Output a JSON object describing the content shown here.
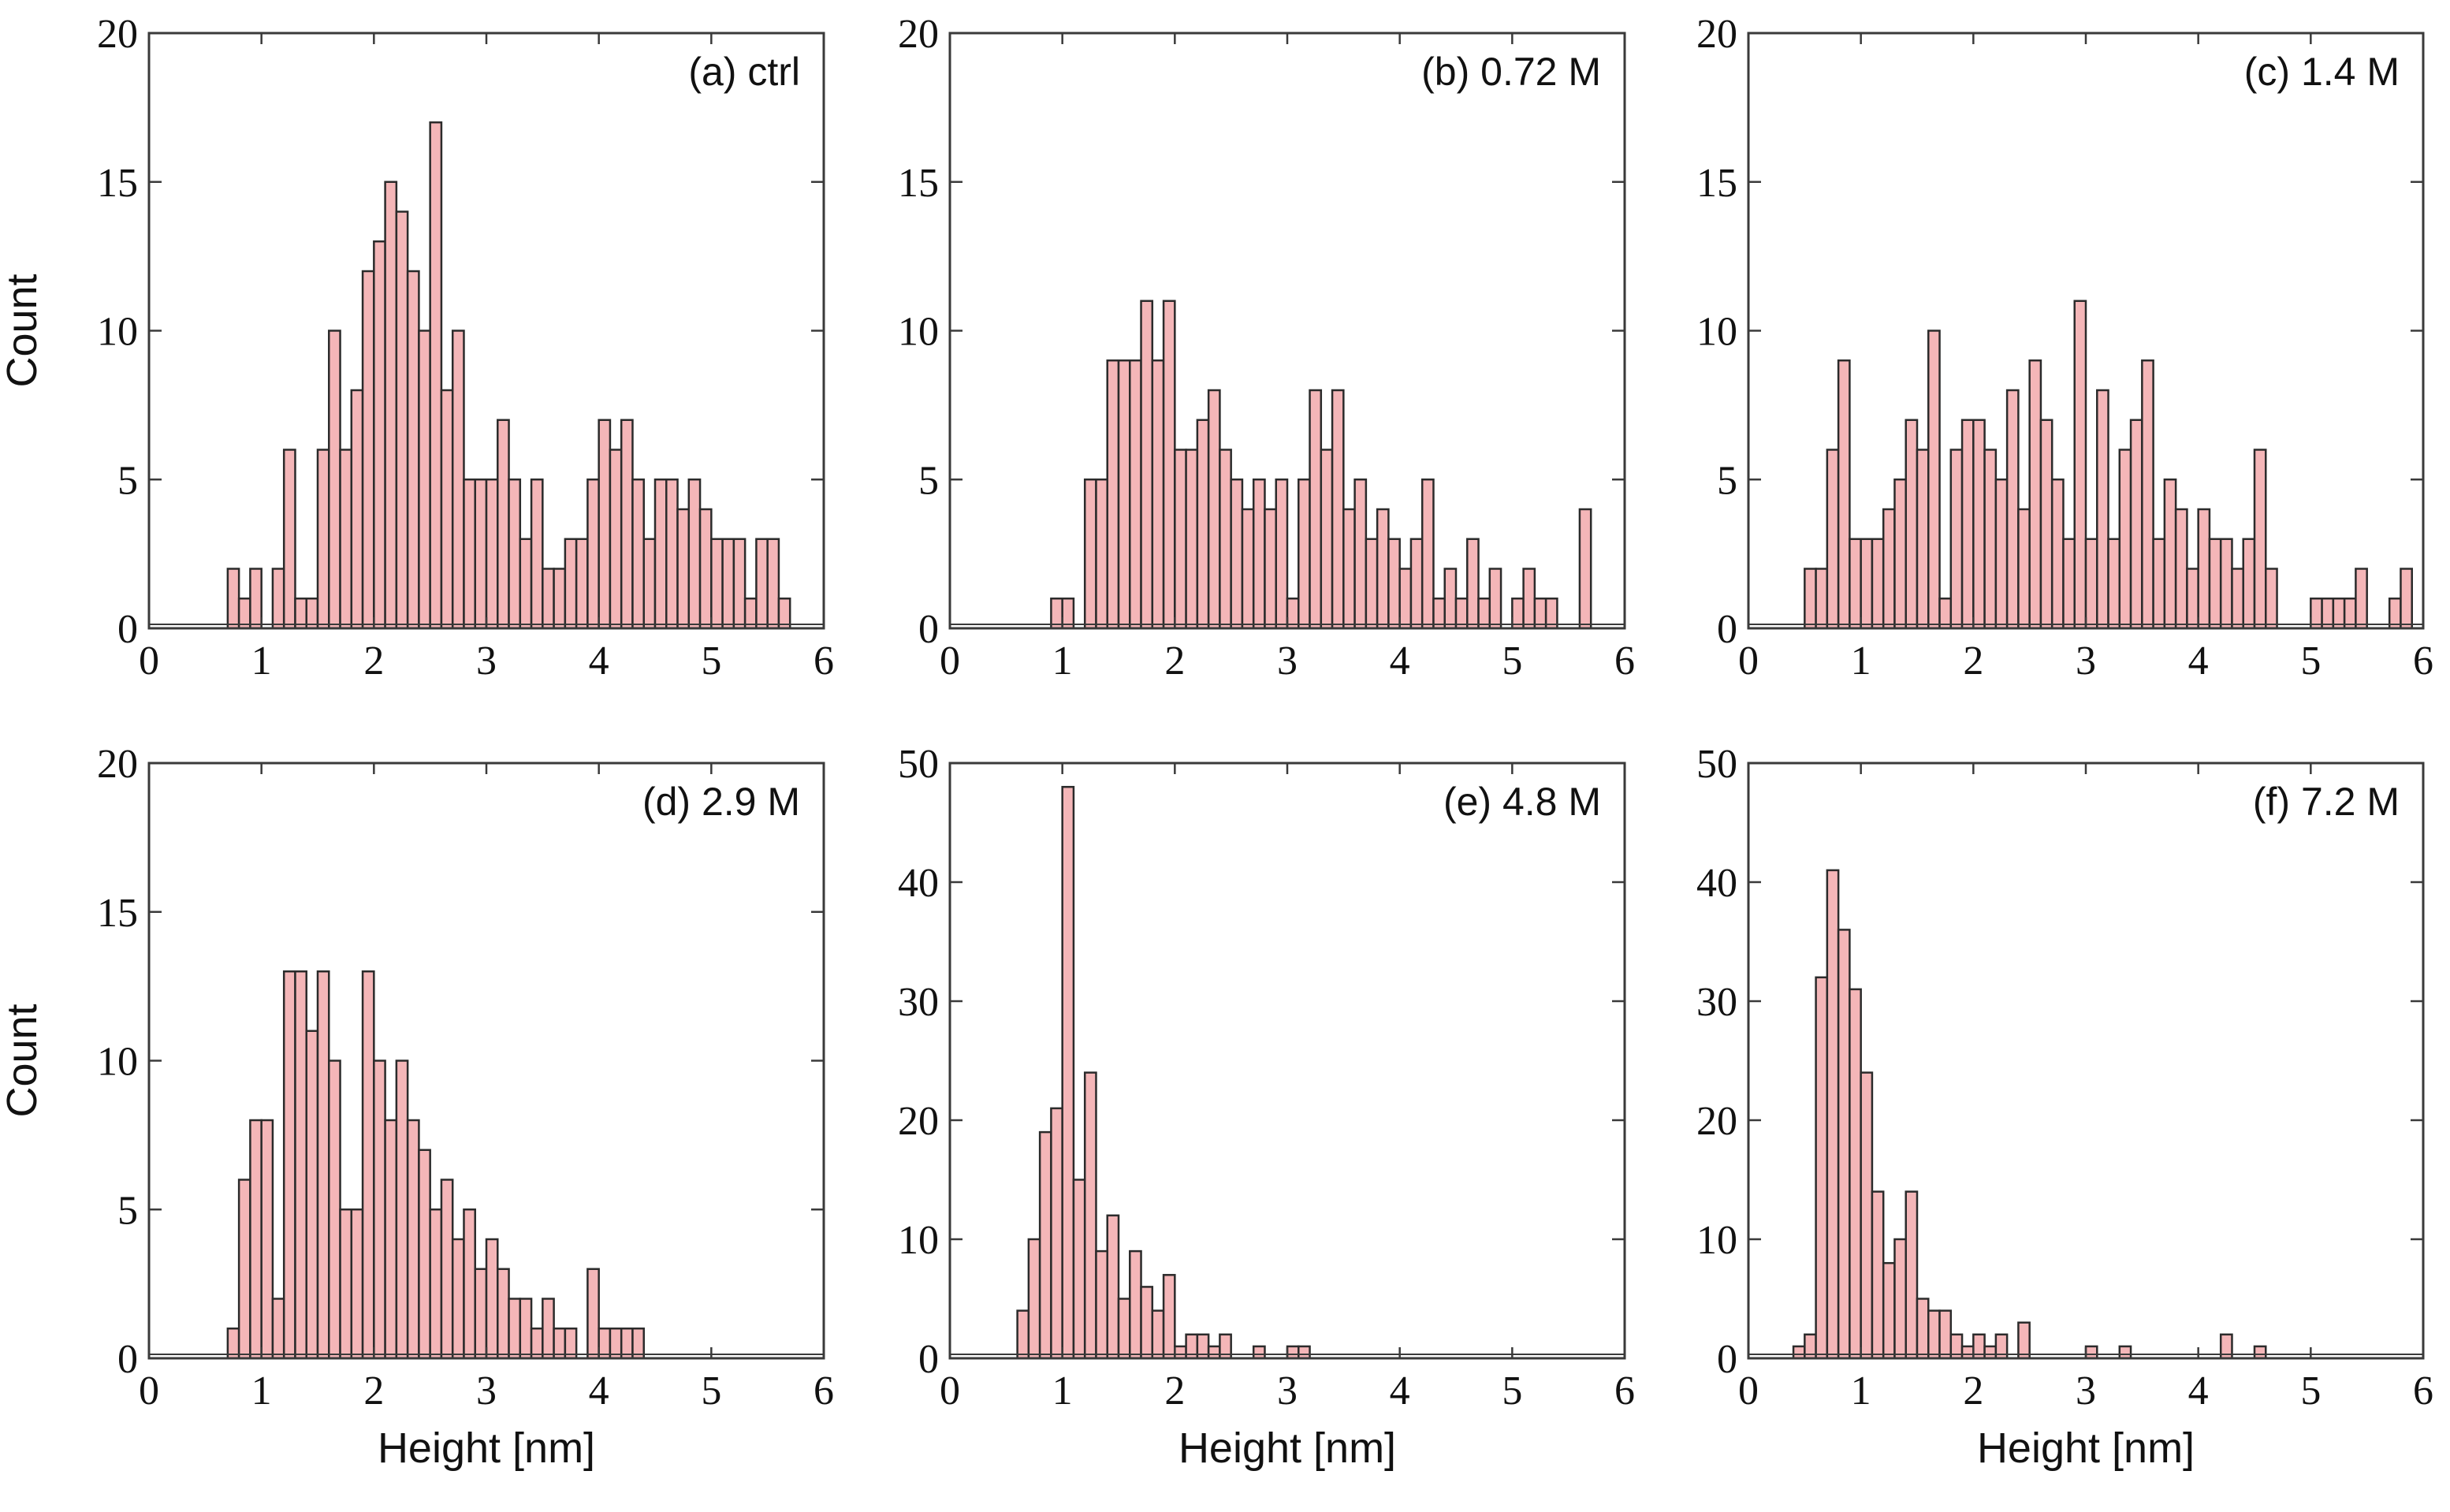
{
  "figure": {
    "bar_color": "#f4b6b8",
    "bar_edge_color": "#2b2b2b"
  },
  "chart_data": [
    {
      "type": "bar",
      "id": "a",
      "title": "(a) ctrl",
      "xlabel": "",
      "ylabel": "Count",
      "xlim": [
        0,
        6
      ],
      "ylim": [
        0,
        20
      ],
      "xticks": [
        "0",
        "1",
        "2",
        "3",
        "4",
        "5",
        "6"
      ],
      "yticks": [
        "0",
        "5",
        "10",
        "15",
        "20"
      ],
      "bin_start": 0.0,
      "bin_width": 0.1,
      "values": [
        0,
        0,
        0,
        0,
        0,
        0,
        0,
        2,
        1,
        2,
        0,
        2,
        6,
        1,
        1,
        6,
        10,
        6,
        8,
        12,
        13,
        15,
        14,
        12,
        10,
        17,
        8,
        10,
        5,
        5,
        5,
        7,
        5,
        3,
        5,
        2,
        2,
        3,
        3,
        5,
        7,
        6,
        7,
        5,
        3,
        5,
        5,
        4,
        5,
        4,
        3,
        3,
        3,
        1,
        3,
        3,
        1,
        0,
        0,
        0
      ]
    },
    {
      "type": "bar",
      "id": "b",
      "title": "(b) 0.72 M",
      "xlabel": "",
      "ylabel": "",
      "xlim": [
        0,
        6
      ],
      "ylim": [
        0,
        20
      ],
      "xticks": [
        "0",
        "1",
        "2",
        "3",
        "4",
        "5",
        "6"
      ],
      "yticks": [
        "0",
        "5",
        "10",
        "15",
        "20"
      ],
      "bin_start": 0.0,
      "bin_width": 0.1,
      "values": [
        0,
        0,
        0,
        0,
        0,
        0,
        0,
        0,
        0,
        1,
        1,
        0,
        5,
        5,
        9,
        9,
        9,
        11,
        9,
        11,
        6,
        6,
        7,
        8,
        6,
        5,
        4,
        5,
        4,
        5,
        1,
        5,
        8,
        6,
        8,
        4,
        5,
        3,
        4,
        3,
        2,
        3,
        5,
        1,
        2,
        1,
        3,
        1,
        2,
        0,
        1,
        2,
        1,
        1,
        0,
        0,
        4,
        0,
        0,
        0
      ]
    },
    {
      "type": "bar",
      "id": "c",
      "title": "(c) 1.4 M",
      "xlabel": "",
      "ylabel": "",
      "xlim": [
        0,
        6
      ],
      "ylim": [
        0,
        20
      ],
      "xticks": [
        "0",
        "1",
        "2",
        "3",
        "4",
        "5",
        "6"
      ],
      "yticks": [
        "0",
        "5",
        "10",
        "15",
        "20"
      ],
      "bin_start": 0.0,
      "bin_width": 0.1,
      "values": [
        0,
        0,
        0,
        0,
        0,
        2,
        2,
        6,
        9,
        3,
        3,
        3,
        4,
        5,
        7,
        6,
        10,
        1,
        6,
        7,
        7,
        6,
        5,
        8,
        4,
        9,
        7,
        5,
        3,
        11,
        3,
        8,
        3,
        6,
        7,
        9,
        3,
        5,
        4,
        2,
        4,
        3,
        3,
        2,
        3,
        6,
        2,
        0,
        0,
        0,
        1,
        1,
        1,
        1,
        2,
        0,
        0,
        1,
        2,
        0
      ]
    },
    {
      "type": "bar",
      "id": "d",
      "title": "(d) 2.9 M",
      "xlabel": "Height [nm]",
      "ylabel": "Count",
      "xlim": [
        0,
        6
      ],
      "ylim": [
        0,
        20
      ],
      "xticks": [
        "0",
        "1",
        "2",
        "3",
        "4",
        "5",
        "6"
      ],
      "yticks": [
        "0",
        "5",
        "10",
        "15",
        "20"
      ],
      "bin_start": 0.0,
      "bin_width": 0.1,
      "values": [
        0,
        0,
        0,
        0,
        0,
        0,
        0,
        1,
        6,
        8,
        8,
        2,
        13,
        13,
        11,
        13,
        10,
        5,
        5,
        13,
        10,
        8,
        10,
        8,
        7,
        5,
        6,
        4,
        5,
        3,
        4,
        3,
        2,
        2,
        1,
        2,
        1,
        1,
        0,
        3,
        1,
        1,
        1,
        1,
        0,
        0,
        0,
        0,
        0,
        0,
        0,
        0,
        0,
        0,
        0,
        0,
        0,
        0,
        0,
        0
      ]
    },
    {
      "type": "bar",
      "id": "e",
      "title": "(e) 4.8 M",
      "xlabel": "Height [nm]",
      "ylabel": "",
      "xlim": [
        0,
        6
      ],
      "ylim": [
        0,
        50
      ],
      "xticks": [
        "0",
        "1",
        "2",
        "3",
        "4",
        "5",
        "6"
      ],
      "yticks": [
        "0",
        "10",
        "20",
        "30",
        "40",
        "50"
      ],
      "bin_start": 0.0,
      "bin_width": 0.1,
      "values": [
        0,
        0,
        0,
        0,
        0,
        0,
        4,
        10,
        19,
        21,
        48,
        15,
        24,
        9,
        12,
        5,
        9,
        6,
        4,
        7,
        1,
        2,
        2,
        1,
        2,
        0,
        0,
        1,
        0,
        0,
        1,
        1,
        0,
        0,
        0,
        0,
        0,
        0,
        0,
        0,
        0,
        0,
        0,
        0,
        0,
        0,
        0,
        0,
        0,
        0,
        0,
        0,
        0,
        0,
        0,
        0,
        0,
        0,
        0,
        0
      ]
    },
    {
      "type": "bar",
      "id": "f",
      "title": "(f) 7.2 M",
      "xlabel": "Height [nm]",
      "ylabel": "",
      "xlim": [
        0,
        6
      ],
      "ylim": [
        0,
        50
      ],
      "xticks": [
        "0",
        "1",
        "2",
        "3",
        "4",
        "5",
        "6"
      ],
      "yticks": [
        "0",
        "10",
        "20",
        "30",
        "40",
        "50"
      ],
      "bin_start": 0.0,
      "bin_width": 0.1,
      "values": [
        0,
        0,
        0,
        0,
        1,
        2,
        32,
        41,
        36,
        31,
        24,
        14,
        8,
        10,
        14,
        5,
        4,
        4,
        2,
        1,
        2,
        1,
        2,
        0,
        3,
        0,
        0,
        0,
        0,
        0,
        1,
        0,
        0,
        1,
        0,
        0,
        0,
        0,
        0,
        0,
        0,
        0,
        2,
        0,
        0,
        1,
        0,
        0,
        0,
        0,
        0,
        0,
        0,
        0,
        0,
        0,
        0,
        0,
        0,
        0
      ]
    }
  ]
}
